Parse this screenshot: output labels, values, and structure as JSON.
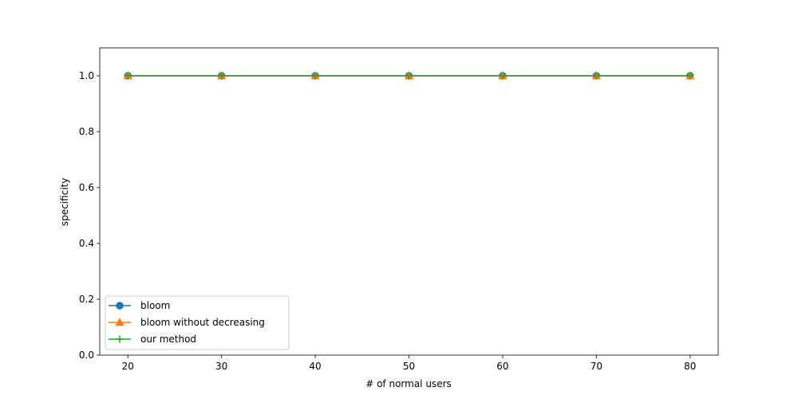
{
  "chart_data": {
    "type": "line",
    "title": "",
    "xlabel": "# of normal users",
    "ylabel": "specificity",
    "x": [
      20,
      30,
      40,
      50,
      60,
      70,
      80
    ],
    "xlim": [
      17,
      83
    ],
    "ylim": [
      0.0,
      1.1
    ],
    "xticks": [
      20,
      30,
      40,
      50,
      60,
      70,
      80
    ],
    "yticks": [
      0.0,
      0.2,
      0.4,
      0.6,
      0.8,
      1.0
    ],
    "ytick_labels": [
      "0.0",
      "0.2",
      "0.4",
      "0.6",
      "0.8",
      "1.0"
    ],
    "grid": false,
    "legend_position": "lower-left",
    "series": [
      {
        "name": "bloom",
        "values": [
          1.0,
          1.0,
          1.0,
          1.0,
          1.0,
          1.0,
          1.0
        ],
        "color": "#1f77b4",
        "marker": "circle"
      },
      {
        "name": "bloom without decreasing",
        "values": [
          1.0,
          1.0,
          1.0,
          1.0,
          1.0,
          1.0,
          1.0
        ],
        "color": "#ff7f0e",
        "marker": "triangle"
      },
      {
        "name": "our method",
        "values": [
          1.0,
          1.0,
          1.0,
          1.0,
          1.0,
          1.0,
          1.0
        ],
        "color": "#2ca02c",
        "marker": "plus"
      }
    ]
  }
}
